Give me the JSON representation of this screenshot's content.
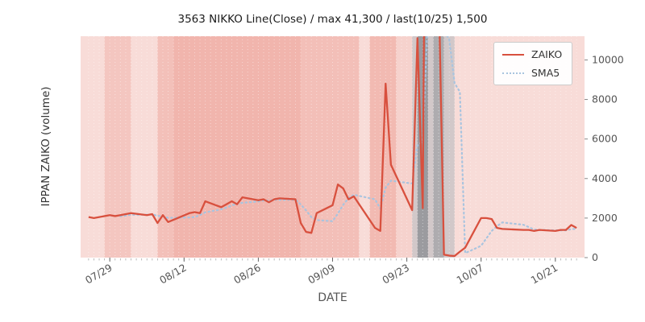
{
  "chart_data": {
    "type": "line",
    "title": "3563 NIKKO Line(Close) / max 41,300 / last(10/25) 1,500",
    "xlabel": "DATE",
    "ylabel": "IPPAN ZAIKO (volume)",
    "ylim": [
      0,
      11200
    ],
    "yticks": [
      0,
      2000,
      4000,
      6000,
      8000,
      10000
    ],
    "xticks": [
      "07/29",
      "08/12",
      "08/26",
      "09/09",
      "09/23",
      "10/07",
      "10/21"
    ],
    "max_annotation": "max 41,300",
    "last_annotation": "last(10/25) 1,500",
    "legend": {
      "position": "upper right",
      "entries": [
        {
          "label": "ZAIKO",
          "color": "#d8503e",
          "style": "solid"
        },
        {
          "label": "SMA5",
          "color": "#a9c4df",
          "style": "dotted"
        }
      ]
    },
    "colors": {
      "figure_bg": "#ffffff",
      "plot_bg": "#f8dcd8",
      "grid": "#ffffff",
      "tick_label": "#555555"
    },
    "dates": [
      "07/25",
      "07/26",
      "07/29",
      "07/30",
      "07/31",
      "08/01",
      "08/02",
      "08/05",
      "08/06",
      "08/07",
      "08/08",
      "08/09",
      "08/13",
      "08/14",
      "08/15",
      "08/16",
      "08/19",
      "08/20",
      "08/21",
      "08/22",
      "08/23",
      "08/26",
      "08/27",
      "08/28",
      "08/29",
      "08/30",
      "09/02",
      "09/03",
      "09/04",
      "09/05",
      "09/06",
      "09/09",
      "09/10",
      "09/11",
      "09/12",
      "09/13",
      "09/17",
      "09/18",
      "09/19",
      "09/20",
      "09/24",
      "09/25",
      "09/26",
      "09/27",
      "09/30",
      "10/01",
      "10/02",
      "10/03",
      "10/04",
      "10/07",
      "10/08",
      "10/09",
      "10/10",
      "10/11",
      "10/15",
      "10/16",
      "10/17",
      "10/18",
      "10/21",
      "10/22",
      "10/23",
      "10/24",
      "10/25"
    ],
    "series": [
      {
        "name": "ZAIKO",
        "values": [
          2050,
          2000,
          2150,
          2100,
          2150,
          2200,
          2250,
          2150,
          2200,
          1750,
          2150,
          1800,
          2250,
          2300,
          2250,
          2850,
          2550,
          2700,
          2850,
          2700,
          3050,
          2900,
          2950,
          2800,
          2950,
          3000,
          2950,
          1750,
          1300,
          1250,
          2250,
          2650,
          3700,
          3500,
          2950,
          3100,
          1500,
          1350,
          8800,
          4700,
          2400,
          11100,
          2500,
          41300,
          150,
          100,
          80,
          300,
          500,
          2000,
          2000,
          1950,
          1500,
          1450,
          1400,
          1400,
          1350,
          1400,
          1350,
          1400,
          1400,
          1650,
          1500
        ]
      },
      {
        "name": "SMA5",
        "values": [
          null,
          null,
          null,
          null,
          2090,
          2120,
          2170,
          2170,
          2190,
          2110,
          2100,
          2010,
          2030,
          2050,
          2150,
          2290,
          2440,
          2530,
          2640,
          2730,
          2770,
          2840,
          2890,
          2880,
          2930,
          2920,
          2930,
          2690,
          2390,
          2050,
          1900,
          1840,
          2230,
          2670,
          3010,
          3180,
          2950,
          2480,
          3540,
          3890,
          3750,
          5670,
          5900,
          12400,
          11490,
          11030,
          8826,
          8386,
          226,
          596,
          976,
          1350,
          1590,
          1780,
          1660,
          1540,
          1420,
          1400,
          1380,
          1380,
          1380,
          1440,
          1460
        ]
      }
    ],
    "background_bands": [
      {
        "from": "07/28",
        "to": "08/02",
        "color": "#f4c6c0",
        "opacity": 1
      },
      {
        "from": "08/07",
        "to": "08/10",
        "color": "#f3c0b9",
        "opacity": 1
      },
      {
        "from": "08/10",
        "to": "09/03",
        "color": "#f1b5ad",
        "opacity": 1
      },
      {
        "from": "09/03",
        "to": "09/14",
        "color": "#f3bfb8",
        "opacity": 1
      },
      {
        "from": "09/16",
        "to": "09/21",
        "color": "#f2bab2",
        "opacity": 1
      },
      {
        "from": "09/21",
        "to": "09/24",
        "color": "#f6d2cd",
        "opacity": 1
      },
      {
        "from": "09/24",
        "to": "10/02",
        "color": "#b3b8bd",
        "opacity": 0.55
      },
      {
        "from": "09/25",
        "to": "09/27",
        "color": "#767d84",
        "opacity": 0.6
      },
      {
        "from": "09/28",
        "to": "09/30",
        "color": "#8a9096",
        "opacity": 0.5
      }
    ]
  }
}
